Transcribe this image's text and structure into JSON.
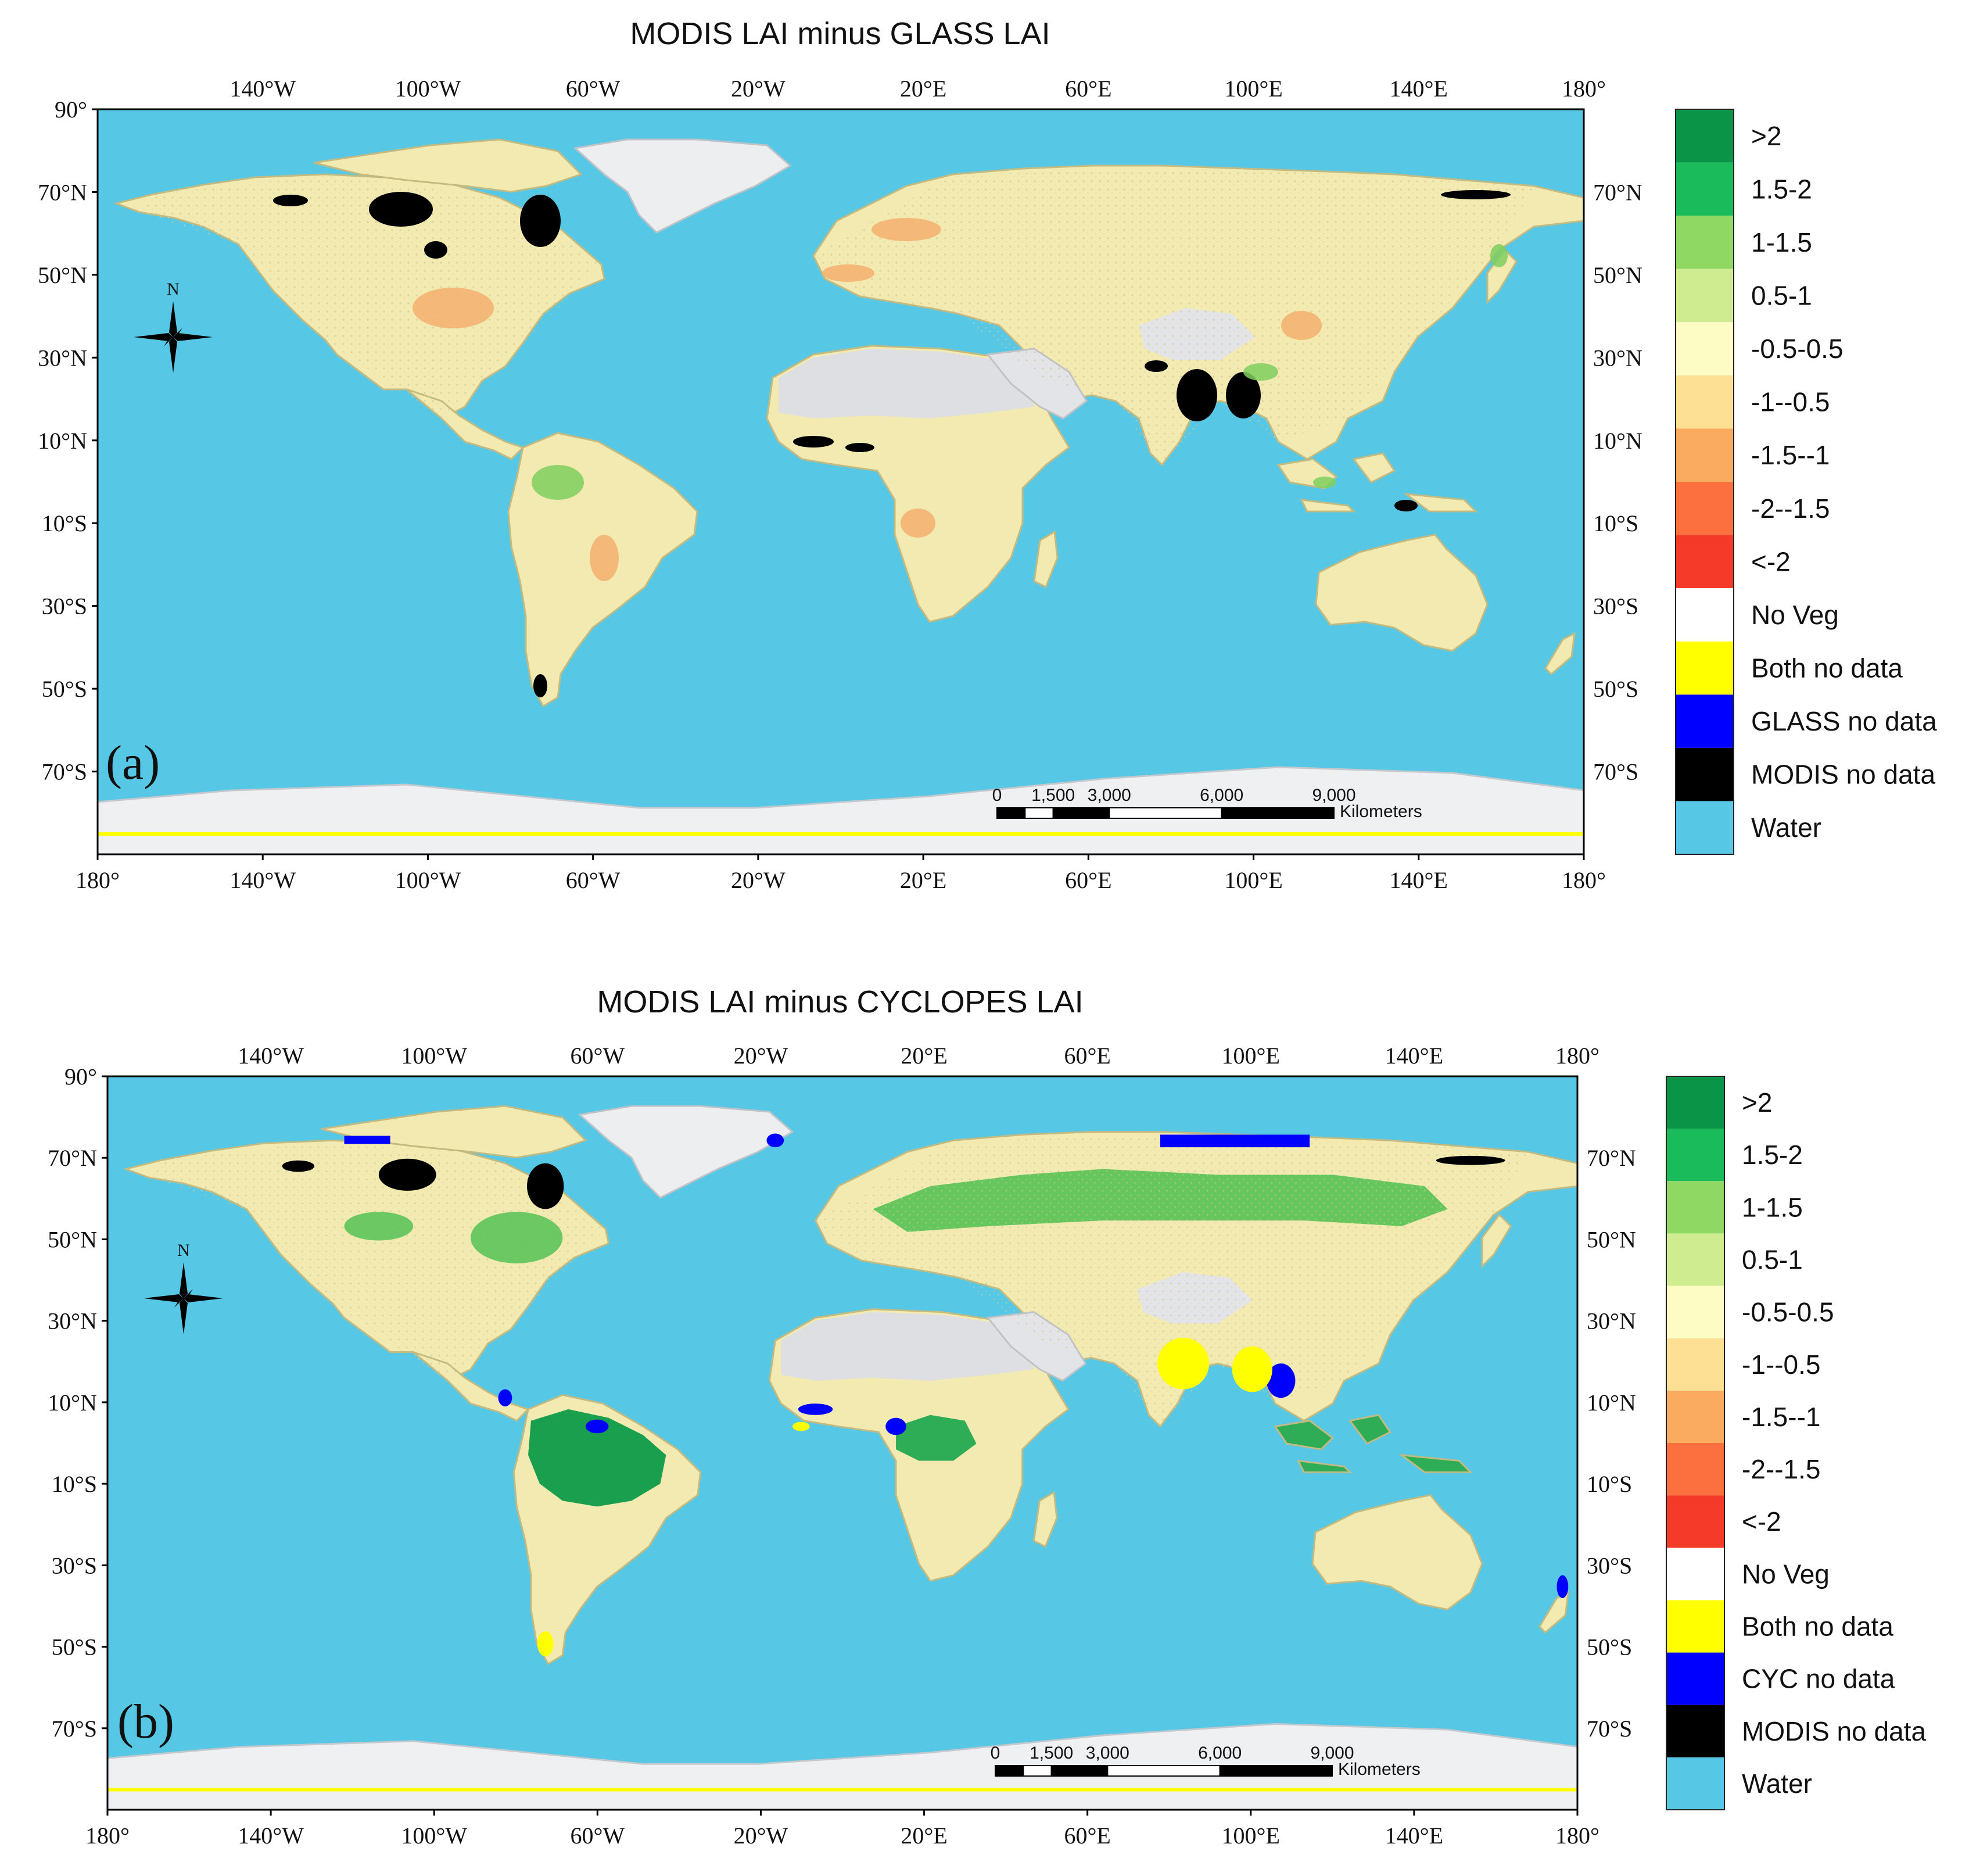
{
  "colors": {
    "water": "#56c8e6",
    "no_veg": "#ffffff",
    "ice": "#e9eaec",
    "desert": "#d8d8dc",
    "land": "#f4ecb4",
    "land_dark": "#d9cf94",
    "no_data_black": "#000000",
    "no_data_blue": "#0000ff",
    "both_no_data": "#ffff00",
    "green_hi": "#0a9a4a",
    "green_mid": "#55c255",
    "orange": "#f5a05a"
  },
  "lon_ticks": [
    "180°",
    "140°W",
    "100°W",
    "60°W",
    "20°W",
    "20°E",
    "60°E",
    "100°E",
    "140°E",
    "180°"
  ],
  "lat_ticks": [
    "90°",
    "70°N",
    "50°N",
    "30°N",
    "10°N",
    "10°S",
    "30°S",
    "50°S",
    "70°S"
  ],
  "panels": [
    {
      "id": "a",
      "title": "MODIS LAI minus GLASS LAI",
      "panel_label": "(a)",
      "legend": [
        {
          "label": ">2",
          "color": "#0a9448"
        },
        {
          "label": "1.5-2",
          "color": "#1abb5a"
        },
        {
          "label": "1-1.5",
          "color": "#8fd864"
        },
        {
          "label": "0.5-1",
          "color": "#d0ec90"
        },
        {
          "label": "-0.5-0.5",
          "color": "#fdfcc4"
        },
        {
          "label": "-1--0.5",
          "color": "#fde094"
        },
        {
          "label": "-1.5--1",
          "color": "#fbab60"
        },
        {
          "label": "-2--1.5",
          "color": "#fc7040"
        },
        {
          "label": "<-2",
          "color": "#f53a2a"
        },
        {
          "label": "No Veg",
          "color": "#ffffff"
        },
        {
          "label": "Both no data",
          "color": "#ffff00"
        },
        {
          "label": "GLASS no data",
          "color": "#0000ff"
        },
        {
          "label": "MODIS no data",
          "color": "#000000"
        },
        {
          "label": "Water",
          "color": "#56c8e6"
        }
      ],
      "scale_bar": {
        "labels": [
          "0",
          "1,500",
          "3,000",
          "6,000",
          "9,000"
        ],
        "unit": "Kilometers"
      },
      "north_label": "N"
    },
    {
      "id": "b",
      "title": "MODIS LAI minus CYCLOPES LAI",
      "panel_label": "(b)",
      "legend": [
        {
          "label": ">2",
          "color": "#0a9448"
        },
        {
          "label": "1.5-2",
          "color": "#1abb5a"
        },
        {
          "label": "1-1.5",
          "color": "#8fd864"
        },
        {
          "label": "0.5-1",
          "color": "#d0ec90"
        },
        {
          "label": "-0.5-0.5",
          "color": "#fdfcc4"
        },
        {
          "label": "-1--0.5",
          "color": "#fde094"
        },
        {
          "label": "-1.5--1",
          "color": "#fbab60"
        },
        {
          "label": "-2--1.5",
          "color": "#fc7040"
        },
        {
          "label": "<-2",
          "color": "#f53a2a"
        },
        {
          "label": "No Veg",
          "color": "#ffffff"
        },
        {
          "label": "Both no data",
          "color": "#ffff00"
        },
        {
          "label": "CYC no data",
          "color": "#0000ff"
        },
        {
          "label": "MODIS no data",
          "color": "#000000"
        },
        {
          "label": "Water",
          "color": "#56c8e6"
        }
      ],
      "scale_bar": {
        "labels": [
          "0",
          "1,500",
          "3,000",
          "6,000",
          "9,000"
        ],
        "unit": "Kilometers"
      },
      "north_label": "N"
    }
  ]
}
